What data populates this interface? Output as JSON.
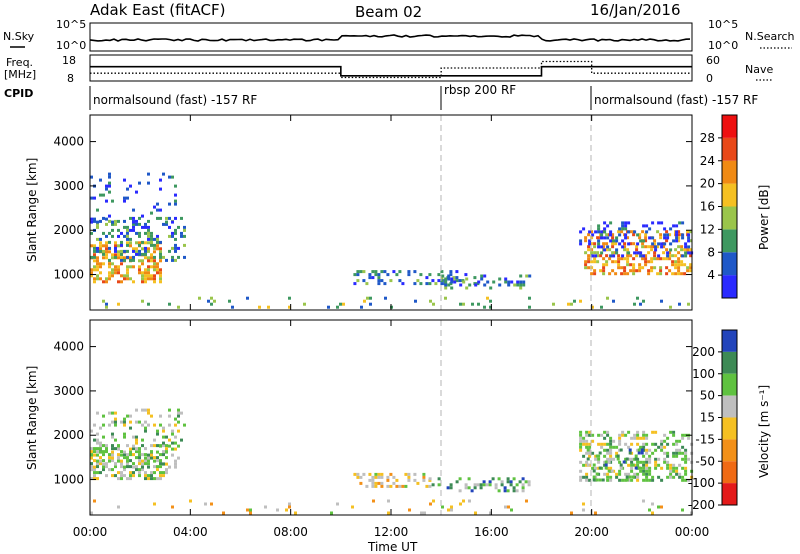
{
  "header": {
    "station": "Adak East (fitACF)",
    "beam": "Beam 02",
    "date": "16/Jan/2016"
  },
  "panel_labels": {
    "nsky": "N.Sky",
    "nsearch": "N.Search",
    "freq": "Freq.",
    "mhz": "[MHz]",
    "nave": "Nave",
    "cpid": "CPID",
    "nsky_ticks": [
      "10^5",
      "10^0"
    ],
    "nsearch_ticks": [
      "10^5",
      "10^0"
    ],
    "freq_ticks": [
      "18",
      "8"
    ],
    "nave_ticks": [
      "60",
      "0"
    ]
  },
  "cpid_segments": [
    {
      "start": 0,
      "end": 14,
      "label": "normalsound (fast) -157 RF"
    },
    {
      "start": 14,
      "end": 20,
      "label": "rbsp 200 RF"
    },
    {
      "start": 20,
      "end": 24,
      "label": "normalsound (fast) -157 RF"
    }
  ],
  "chart_data": [
    {
      "type": "heatmap",
      "xlabel": "Time UT",
      "ylabel": "Slant Range [km]",
      "xlim": [
        0,
        24
      ],
      "ylim": [
        200,
        4600
      ],
      "x_ticks": [
        "00:00",
        "04:00",
        "08:00",
        "12:00",
        "16:00",
        "20:00",
        "00:00"
      ],
      "y_ticks": [
        "1000",
        "2000",
        "3000",
        "4000"
      ],
      "colorbar_label": "Power [dB]",
      "colorbar_ticks": [
        "4",
        "8",
        "12",
        "16",
        "20",
        "24",
        "28"
      ],
      "colorbar_colors": [
        "#2a2aff",
        "#1f58c8",
        "#3e9860",
        "#9ac54b",
        "#f5c022",
        "#f08a14",
        "#e84818",
        "#ee1010"
      ],
      "scatter_regions": [
        {
          "t0": 0.0,
          "t1": 2.8,
          "r0": 850,
          "r1": 1750,
          "level": 5,
          "density": 0.9
        },
        {
          "t0": 0.0,
          "t1": 3.8,
          "r0": 1300,
          "r1": 2300,
          "level": 2,
          "density": 0.55
        },
        {
          "t0": 0.0,
          "t1": 3.6,
          "r0": 2200,
          "r1": 3300,
          "level": 1,
          "density": 0.15
        },
        {
          "t0": 10.5,
          "t1": 15.5,
          "r0": 800,
          "r1": 1100,
          "level": 2,
          "density": 0.6
        },
        {
          "t0": 14.0,
          "t1": 17.5,
          "r0": 700,
          "r1": 1000,
          "level": 2,
          "density": 0.5
        },
        {
          "t0": 19.7,
          "t1": 24.0,
          "r0": 1000,
          "r1": 2000,
          "level": 5,
          "density": 0.8
        },
        {
          "t0": 19.5,
          "t1": 24.0,
          "r0": 1400,
          "r1": 2200,
          "level": 1,
          "density": 0.45
        },
        {
          "t0": 0.0,
          "t1": 24.0,
          "r0": 250,
          "r1": 500,
          "level": 3,
          "density": 0.12
        }
      ]
    },
    {
      "type": "heatmap",
      "xlabel": "Time UT",
      "ylabel": "Slant Range [km]",
      "xlim": [
        0,
        24
      ],
      "ylim": [
        200,
        4600
      ],
      "x_ticks": [
        "00:00",
        "04:00",
        "08:00",
        "12:00",
        "16:00",
        "20:00",
        "00:00"
      ],
      "y_ticks": [
        "1000",
        "2000",
        "3000",
        "4000"
      ],
      "colorbar_label": "Velocity [m s⁻¹]",
      "colorbar_ticks": [
        "200",
        "100",
        "50",
        "15",
        "-15",
        "-50",
        "-100",
        "-200"
      ],
      "colorbar_colors": [
        "#2244bb",
        "#3d8a55",
        "#5fc240",
        "#bfbfbf",
        "#f5c022",
        "#f39018",
        "#f06a14",
        "#e41a1a"
      ],
      "scatter_regions": [
        {
          "t0": 0.0,
          "t1": 3.0,
          "r0": 1000,
          "r1": 1800,
          "level": 3,
          "density": 0.9
        },
        {
          "t0": 0.0,
          "t1": 3.8,
          "r0": 1300,
          "r1": 2600,
          "level": 3,
          "density": 0.35
        },
        {
          "t0": 10.5,
          "t1": 13.5,
          "r0": 850,
          "r1": 1150,
          "level": 4,
          "density": 0.7
        },
        {
          "t0": 13.5,
          "t1": 17.5,
          "r0": 750,
          "r1": 1050,
          "level": 2,
          "density": 0.45
        },
        {
          "t0": 19.5,
          "t1": 24.0,
          "r0": 1000,
          "r1": 2100,
          "level": 3,
          "density": 0.7
        },
        {
          "t0": 19.8,
          "t1": 22.0,
          "r0": 1000,
          "r1": 1700,
          "level": 2,
          "density": 0.35
        },
        {
          "t0": 0.0,
          "t1": 24.0,
          "r0": 250,
          "r1": 550,
          "level": 4,
          "density": 0.1
        }
      ]
    }
  ],
  "summary_data": {
    "nsky_level": 0.55,
    "nsearch_level": 0.55,
    "freq": [
      {
        "start": 0,
        "end": 10,
        "value": 13.5
      },
      {
        "start": 10,
        "end": 18,
        "value": 10.0
      },
      {
        "start": 18,
        "end": 24,
        "value": 13.5
      }
    ],
    "nave": [
      {
        "start": 0,
        "end": 10,
        "value": 18
      },
      {
        "start": 10,
        "end": 14,
        "value": 8
      },
      {
        "start": 14,
        "end": 18,
        "value": 30
      },
      {
        "start": 18,
        "end": 20,
        "value": 45
      },
      {
        "start": 20,
        "end": 24,
        "value": 18
      }
    ]
  }
}
